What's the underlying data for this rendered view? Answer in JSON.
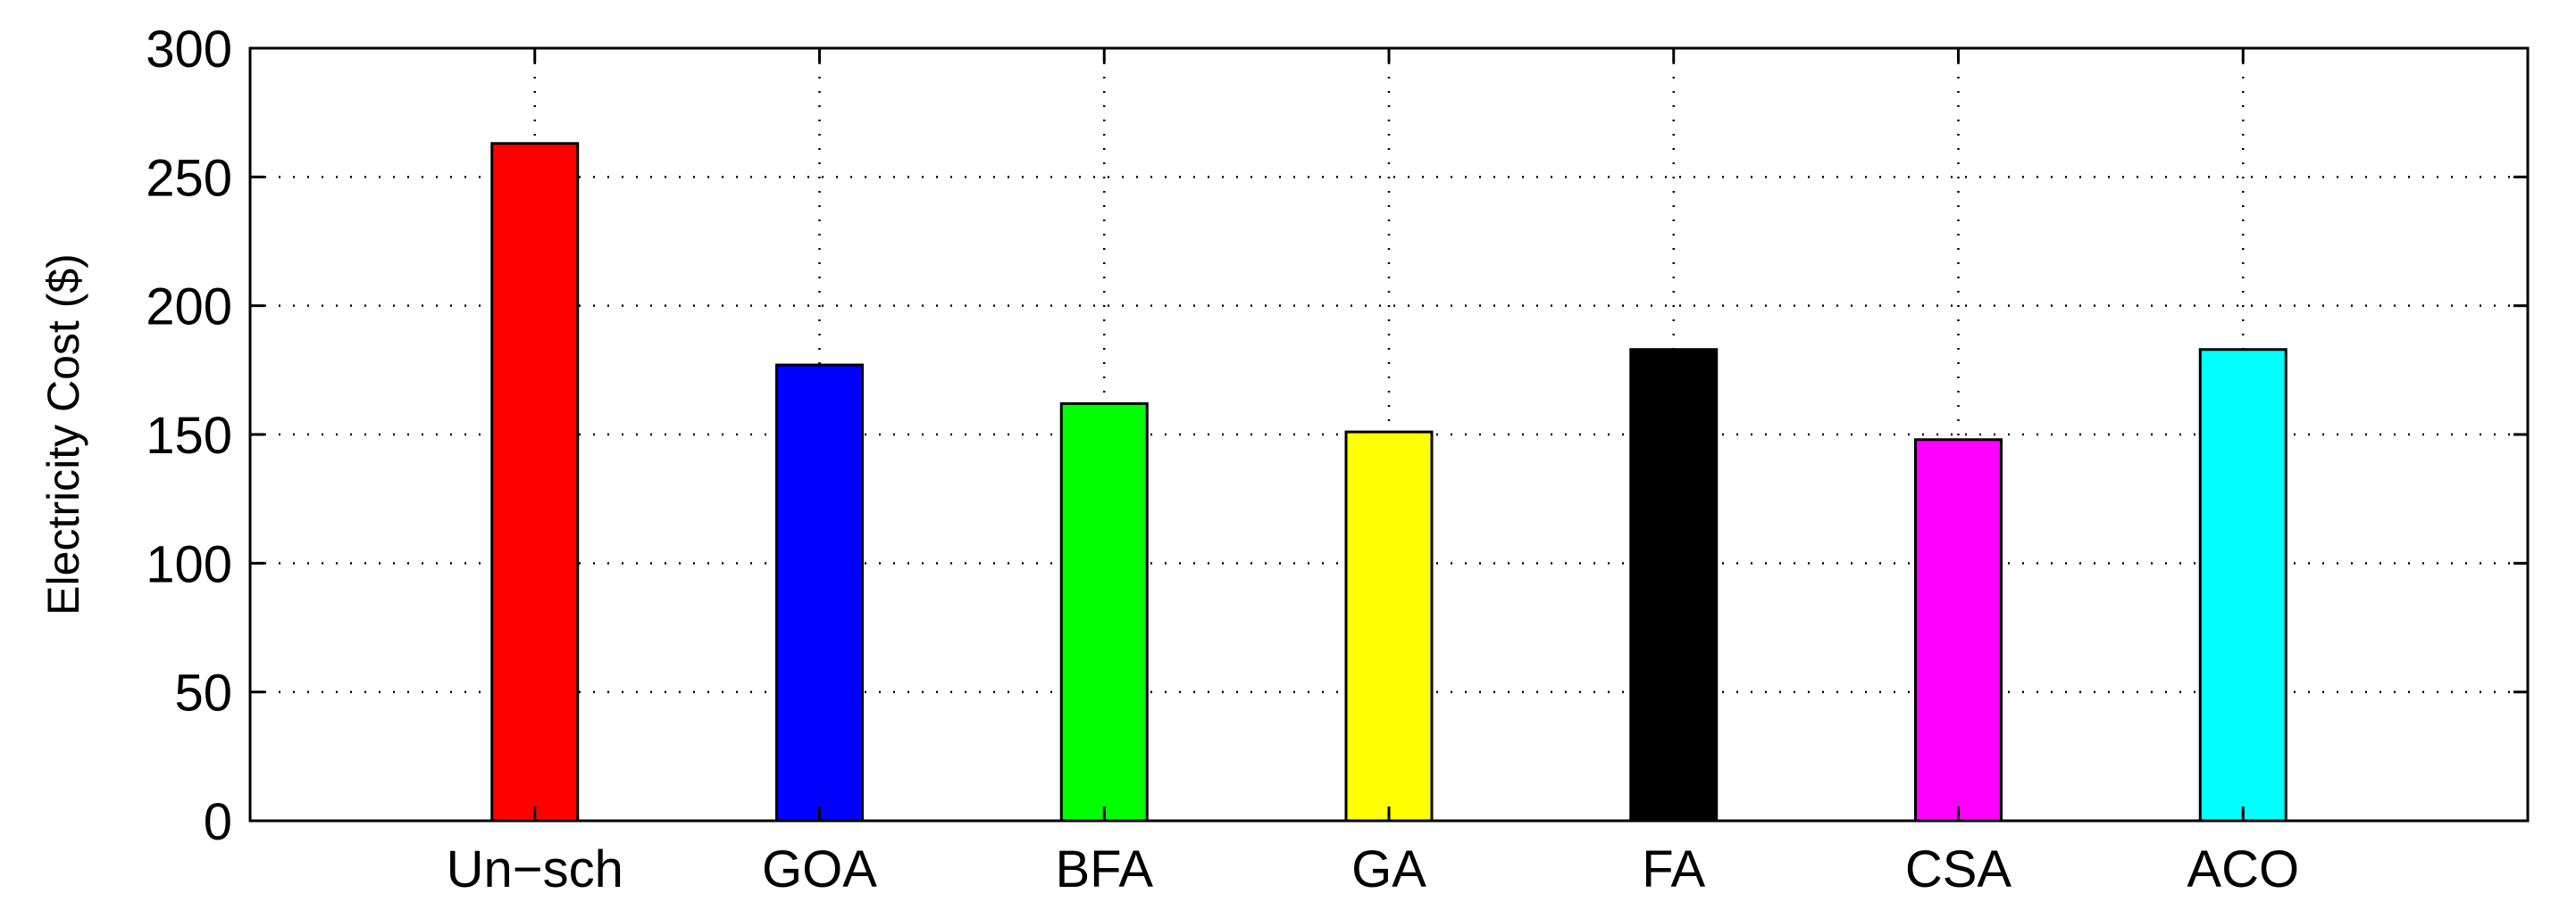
{
  "chart_data": {
    "type": "bar",
    "title": "",
    "xlabel": "",
    "ylabel": "Electricity Cost ($)",
    "ylim": [
      0,
      300
    ],
    "yticks": [
      "0",
      "50",
      "100",
      "150",
      "200",
      "250",
      "300"
    ],
    "grid": true,
    "categories": [
      "Un−sch",
      "GOA",
      "BFA",
      "GA",
      "FA",
      "CSA",
      "ACO"
    ],
    "values": [
      263,
      177,
      162,
      151,
      183,
      148,
      183
    ],
    "colors": [
      "#ff0000",
      "#0000ff",
      "#00ff00",
      "#ffff00",
      "#000000",
      "#ff00ff",
      "#00ffff"
    ]
  }
}
